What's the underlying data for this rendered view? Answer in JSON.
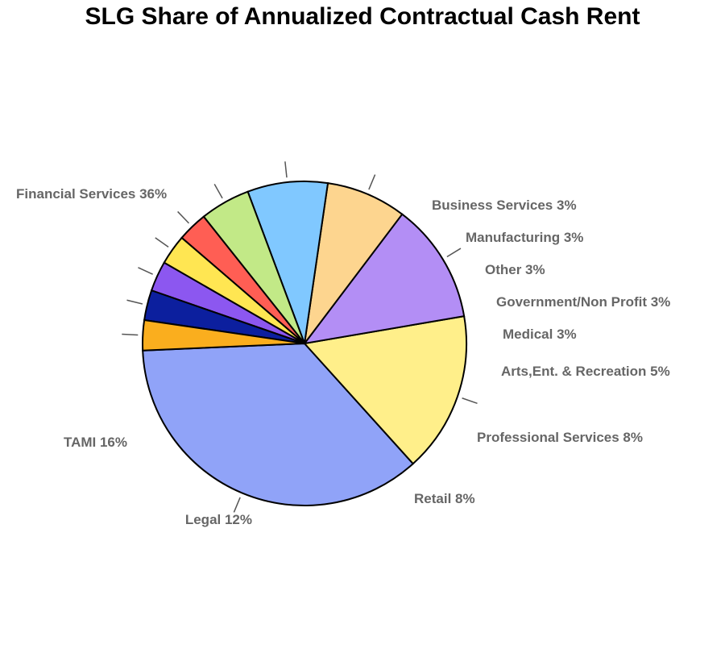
{
  "chart_data": {
    "type": "pie",
    "title": "SLG Share of Annualized Contractual Cash Rent",
    "slices": [
      {
        "label": "Financial Services 36%",
        "value": 36,
        "color": "#90A3F8"
      },
      {
        "label": "TAMI 16%",
        "value": 16,
        "color": "#FFEF8A"
      },
      {
        "label": "Legal 12%",
        "value": 12,
        "color": "#B38EF5"
      },
      {
        "label": "Retail 8%",
        "value": 8,
        "color": "#FDD58F"
      },
      {
        "label": "Professional Services 8%",
        "value": 8,
        "color": "#80C8FF"
      },
      {
        "label": "Arts,Ent. & Recreation 5%",
        "value": 5,
        "color": "#C2E987"
      },
      {
        "label": "Medical 3%",
        "value": 3,
        "color": "#FF5E54"
      },
      {
        "label": "Government/Non Profit 3%",
        "value": 3,
        "color": "#FFE652"
      },
      {
        "label": "Other 3%",
        "value": 3,
        "color": "#8C57F0"
      },
      {
        "label": "Manufacturing 3%",
        "value": 3,
        "color": "#0C1F9E"
      },
      {
        "label": "Business Services 3%",
        "value": 3,
        "color": "#FAAE1E"
      }
    ]
  }
}
